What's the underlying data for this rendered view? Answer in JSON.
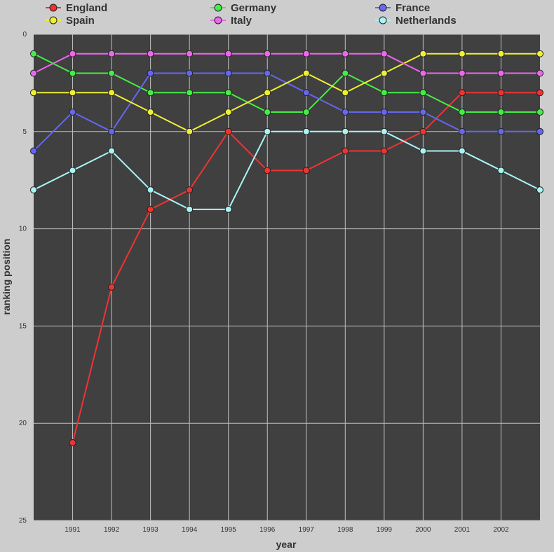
{
  "chart_data": {
    "type": "line",
    "title": "",
    "xlabel": "year",
    "ylabel": "ranking position",
    "x": [
      1990,
      1991,
      1992,
      1993,
      1994,
      1995,
      1996,
      1997,
      1998,
      1999,
      2000,
      2001,
      2002,
      2003
    ],
    "x_tick_labels": [
      "1991",
      "1992",
      "1993",
      "1994",
      "1995",
      "1996",
      "1997",
      "1998",
      "1999",
      "2000",
      "2001",
      "2002"
    ],
    "xlim": [
      1990,
      2003
    ],
    "ylim": [
      0,
      25
    ],
    "y_inverted": true,
    "y_tick_labels": [
      "0",
      "5",
      "10",
      "15",
      "20",
      "25"
    ],
    "grid": true,
    "legend_position": "top",
    "plot_background": "#404040",
    "series": [
      {
        "name": "England",
        "color": "#ee3333",
        "values": [
          null,
          21,
          13,
          9,
          8,
          5,
          7,
          7,
          6,
          6,
          5,
          3,
          3,
          3
        ]
      },
      {
        "name": "Germany",
        "color": "#44ee44",
        "values": [
          1,
          2,
          2,
          3,
          3,
          3,
          4,
          4,
          2,
          3,
          3,
          4,
          4,
          4
        ]
      },
      {
        "name": "France",
        "color": "#6666ee",
        "values": [
          6,
          4,
          5,
          2,
          2,
          2,
          2,
          3,
          4,
          4,
          4,
          5,
          5,
          5
        ]
      },
      {
        "name": "Spain",
        "color": "#f0f033",
        "values": [
          3,
          3,
          3,
          4,
          5,
          4,
          3,
          2,
          3,
          2,
          1,
          1,
          1,
          1
        ]
      },
      {
        "name": "Italy",
        "color": "#ee66ee",
        "values": [
          2,
          1,
          1,
          1,
          1,
          1,
          1,
          1,
          1,
          1,
          2,
          2,
          2,
          2
        ]
      },
      {
        "name": "Netherlands",
        "color": "#aaf4f4",
        "values": [
          8,
          7,
          6,
          8,
          9,
          9,
          5,
          5,
          5,
          5,
          6,
          6,
          7,
          8
        ]
      }
    ]
  }
}
